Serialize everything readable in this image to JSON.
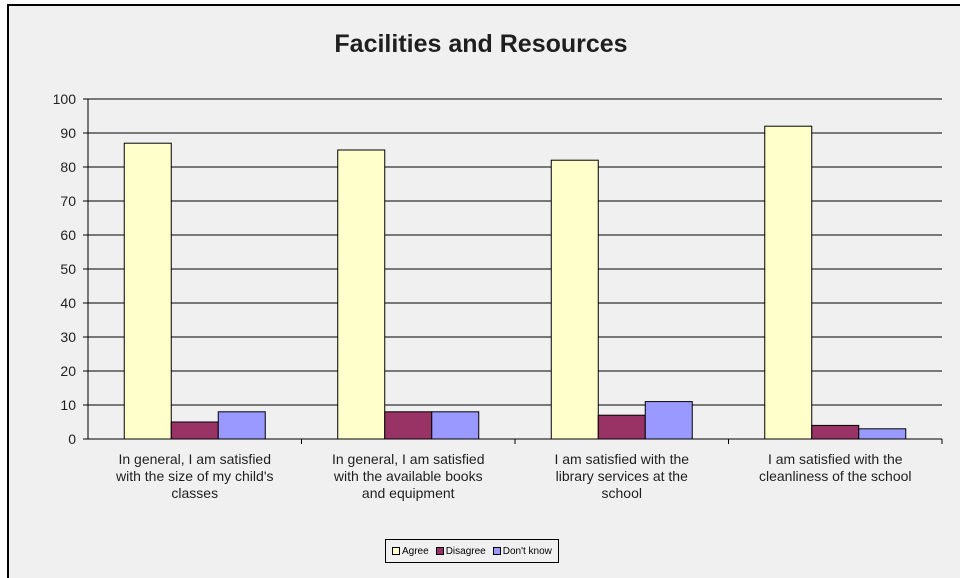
{
  "chart_data": {
    "type": "bar",
    "title": "Facilities and Resources",
    "categories": [
      [
        "In general, I am satisfied",
        "with the size of my child's",
        "classes"
      ],
      [
        "In general, I am satisfied",
        "with the available books",
        "and equipment"
      ],
      [
        "I am satisfied with the",
        "library services at the",
        "school"
      ],
      [
        "I am satisfied with the",
        "cleanliness of the school"
      ]
    ],
    "series": [
      {
        "name": "Agree",
        "color": "#ffffcc",
        "values": [
          87,
          85,
          82,
          92
        ]
      },
      {
        "name": "Disagree",
        "color": "#993366",
        "values": [
          5,
          8,
          7,
          4
        ]
      },
      {
        "name": "Don't know",
        "color": "#9999ff",
        "values": [
          8,
          8,
          11,
          3
        ]
      }
    ],
    "ylim": [
      0,
      100
    ],
    "yticks": [
      0,
      10,
      20,
      30,
      40,
      50,
      60,
      70,
      80,
      90,
      100
    ],
    "grid": true,
    "legend_position": "bottom"
  }
}
